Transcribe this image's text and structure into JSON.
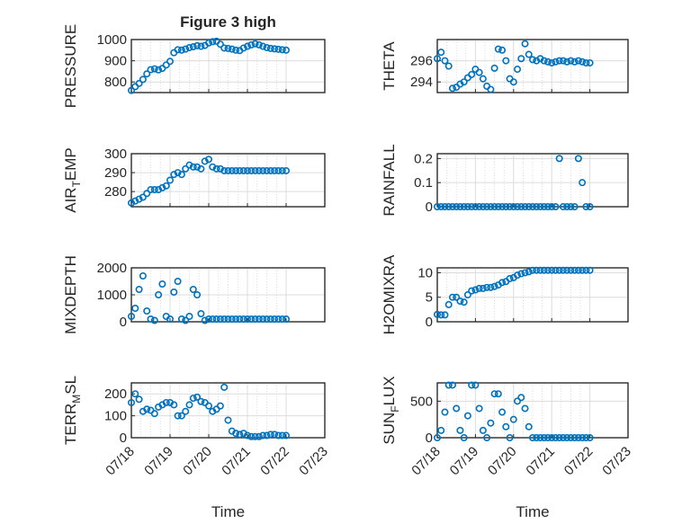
{
  "chart_data": [
    {
      "type": "scatter",
      "title": "Figure 3 high",
      "ylabel": "PRESSURE",
      "ylim": [
        750,
        1000
      ],
      "yticks": [
        "800",
        "900",
        "1000"
      ],
      "xlabel": "",
      "xticks": [],
      "color": "#0072bd",
      "series": [
        {
          "x": [
            0.0,
            0.1,
            0.2,
            0.3,
            0.4,
            0.5,
            0.6,
            0.7,
            0.8,
            0.9,
            1.0,
            1.1,
            1.2,
            1.3,
            1.4,
            1.5,
            1.6,
            1.7,
            1.8,
            1.9,
            2.0,
            2.1,
            2.2,
            2.3,
            2.4,
            2.5,
            2.6,
            2.7,
            2.8,
            2.9,
            3.0,
            3.1,
            3.2,
            3.3,
            3.4,
            3.5,
            3.6,
            3.7,
            3.8,
            3.9,
            4.0
          ],
          "y": [
            760,
            778,
            793,
            812,
            838,
            858,
            862,
            857,
            864,
            880,
            897,
            938,
            952,
            950,
            955,
            962,
            966,
            971,
            968,
            972,
            984,
            990,
            992,
            978,
            960,
            958,
            955,
            950,
            948,
            960,
            968,
            975,
            980,
            975,
            968,
            962,
            958,
            956,
            954,
            952,
            950
          ]
        }
      ]
    },
    {
      "type": "scatter",
      "title": "",
      "ylabel": "THETA",
      "ylim": [
        293,
        298
      ],
      "yticks": [
        "294",
        "296"
      ],
      "xlabel": "",
      "xticks": [],
      "color": "#0072bd",
      "series": [
        {
          "x": [
            0.0,
            0.1,
            0.2,
            0.3,
            0.4,
            0.5,
            0.6,
            0.7,
            0.8,
            0.9,
            1.0,
            1.1,
            1.2,
            1.3,
            1.4,
            1.5,
            1.6,
            1.7,
            1.8,
            1.9,
            2.0,
            2.1,
            2.2,
            2.3,
            2.4,
            2.5,
            2.6,
            2.7,
            2.8,
            2.9,
            3.0,
            3.1,
            3.2,
            3.3,
            3.4,
            3.5,
            3.6,
            3.7,
            3.8,
            3.9,
            4.0
          ],
          "y": [
            296.2,
            296.8,
            296.0,
            295.5,
            293.4,
            293.5,
            293.8,
            294.0,
            294.4,
            294.7,
            295.2,
            294.9,
            294.3,
            293.6,
            293.3,
            295.3,
            297.1,
            297.0,
            296.0,
            294.3,
            294.0,
            295.2,
            296.2,
            297.6,
            296.6,
            296.1,
            296.0,
            296.2,
            296.0,
            295.9,
            295.8,
            295.9,
            296.0,
            296.0,
            295.9,
            296.0,
            295.9,
            296.0,
            295.9,
            295.8,
            295.8
          ]
        }
      ]
    },
    {
      "type": "scatter",
      "title": "",
      "ylabel": "AIR_TEMP",
      "ylim": [
        272,
        300
      ],
      "yticks": [
        "280",
        "290",
        "300"
      ],
      "xlabel": "",
      "xticks": [],
      "color": "#0072bd",
      "series": [
        {
          "x": [
            0.0,
            0.1,
            0.2,
            0.3,
            0.4,
            0.5,
            0.6,
            0.7,
            0.8,
            0.9,
            1.0,
            1.1,
            1.2,
            1.3,
            1.4,
            1.5,
            1.6,
            1.7,
            1.8,
            1.9,
            2.0,
            2.1,
            2.2,
            2.3,
            2.4,
            2.5,
            2.6,
            2.7,
            2.8,
            2.9,
            3.0,
            3.1,
            3.2,
            3.3,
            3.4,
            3.5,
            3.6,
            3.7,
            3.8,
            3.9,
            4.0
          ],
          "y": [
            274,
            275,
            276,
            277,
            279,
            281,
            281,
            281,
            282,
            283,
            286,
            289,
            290,
            289,
            292,
            294,
            293,
            293,
            292,
            296,
            297,
            293,
            292,
            292,
            291,
            291,
            291,
            291,
            291,
            291,
            291,
            291,
            291,
            291,
            291,
            291,
            291,
            291,
            291,
            291,
            291
          ]
        }
      ]
    },
    {
      "type": "scatter",
      "title": "",
      "ylabel": "RAINFALL",
      "ylim": [
        0,
        0.22
      ],
      "yticks": [
        "0",
        "0.1",
        "0.2"
      ],
      "xlabel": "",
      "xticks": [],
      "color": "#0072bd",
      "series": [
        {
          "x": [
            0.0,
            0.1,
            0.2,
            0.3,
            0.4,
            0.5,
            0.6,
            0.7,
            0.8,
            0.9,
            1.0,
            1.1,
            1.2,
            1.3,
            1.4,
            1.5,
            1.6,
            1.7,
            1.8,
            1.9,
            2.0,
            2.1,
            2.2,
            2.3,
            2.4,
            2.5,
            2.6,
            2.7,
            2.8,
            2.9,
            3.0,
            3.1,
            3.2,
            3.3,
            3.4,
            3.5,
            3.6,
            3.7,
            3.8,
            3.9,
            4.0
          ],
          "y": [
            0,
            0,
            0,
            0,
            0,
            0,
            0,
            0,
            0,
            0,
            0,
            0,
            0,
            0,
            0,
            0,
            0,
            0,
            0,
            0,
            0,
            0,
            0,
            0,
            0,
            0,
            0,
            0,
            0,
            0,
            0,
            0,
            0.2,
            0,
            0,
            0,
            0,
            0.2,
            0.1,
            0,
            0
          ]
        }
      ]
    },
    {
      "type": "scatter",
      "title": "",
      "ylabel": "MIXDEPTH",
      "ylim": [
        0,
        2000
      ],
      "yticks": [
        "0",
        "1000",
        "2000"
      ],
      "xlabel": "",
      "xticks": [],
      "color": "#0072bd",
      "series": [
        {
          "x": [
            0.0,
            0.1,
            0.2,
            0.3,
            0.4,
            0.5,
            0.6,
            0.7,
            0.8,
            0.9,
            1.0,
            1.1,
            1.2,
            1.3,
            1.4,
            1.5,
            1.6,
            1.7,
            1.8,
            1.9,
            2.0,
            2.1,
            2.2,
            2.3,
            2.4,
            2.5,
            2.6,
            2.7,
            2.8,
            2.9,
            3.0,
            3.1,
            3.2,
            3.3,
            3.4,
            3.5,
            3.6,
            3.7,
            3.8,
            3.9,
            4.0
          ],
          "y": [
            200,
            500,
            1200,
            1700,
            400,
            100,
            50,
            1000,
            1400,
            200,
            100,
            1100,
            1500,
            100,
            50,
            200,
            1200,
            1000,
            300,
            50,
            100,
            100,
            100,
            100,
            100,
            100,
            100,
            100,
            100,
            100,
            100,
            100,
            100,
            100,
            100,
            100,
            100,
            100,
            100,
            100,
            100
          ]
        }
      ]
    },
    {
      "type": "scatter",
      "title": "",
      "ylabel": "H2OMIXRA",
      "ylim": [
        0,
        11
      ],
      "yticks": [
        "0",
        "5",
        "10"
      ],
      "xlabel": "",
      "xticks": [],
      "color": "#0072bd",
      "series": [
        {
          "x": [
            0.0,
            0.1,
            0.2,
            0.3,
            0.4,
            0.5,
            0.6,
            0.7,
            0.8,
            0.9,
            1.0,
            1.1,
            1.2,
            1.3,
            1.4,
            1.5,
            1.6,
            1.7,
            1.8,
            1.9,
            2.0,
            2.1,
            2.2,
            2.3,
            2.4,
            2.5,
            2.6,
            2.7,
            2.8,
            2.9,
            3.0,
            3.1,
            3.2,
            3.3,
            3.4,
            3.5,
            3.6,
            3.7,
            3.8,
            3.9,
            4.0
          ],
          "y": [
            1.5,
            1.4,
            1.4,
            3.5,
            5.0,
            5.0,
            4.2,
            4.0,
            5.5,
            6.3,
            6.5,
            6.8,
            6.8,
            7.0,
            7.0,
            7.2,
            7.5,
            8.0,
            8.2,
            8.8,
            9.0,
            9.5,
            9.8,
            10.0,
            10.2,
            10.5,
            10.5,
            10.5,
            10.5,
            10.5,
            10.5,
            10.5,
            10.5,
            10.5,
            10.5,
            10.5,
            10.5,
            10.5,
            10.5,
            10.5,
            10.5
          ]
        }
      ]
    },
    {
      "type": "scatter",
      "title": "",
      "ylabel": "TERR_MSL",
      "ylim": [
        0,
        250
      ],
      "yticks": [
        "0",
        "100",
        "200"
      ],
      "xlabel": "Time",
      "xticks": [
        "07/18",
        "07/19",
        "07/20",
        "07/21",
        "07/22",
        "07/23"
      ],
      "color": "#0072bd",
      "series": [
        {
          "x": [
            0.0,
            0.1,
            0.2,
            0.3,
            0.4,
            0.5,
            0.6,
            0.7,
            0.8,
            0.9,
            1.0,
            1.1,
            1.2,
            1.3,
            1.4,
            1.5,
            1.6,
            1.7,
            1.8,
            1.9,
            2.0,
            2.1,
            2.2,
            2.3,
            2.4,
            2.5,
            2.6,
            2.7,
            2.8,
            2.9,
            3.0,
            3.1,
            3.2,
            3.3,
            3.4,
            3.5,
            3.6,
            3.7,
            3.8,
            3.9,
            4.0
          ],
          "y": [
            160,
            200,
            175,
            120,
            130,
            125,
            110,
            140,
            150,
            160,
            160,
            150,
            100,
            100,
            120,
            150,
            180,
            185,
            165,
            160,
            145,
            120,
            130,
            145,
            230,
            80,
            30,
            20,
            15,
            20,
            10,
            5,
            5,
            5,
            10,
            10,
            15,
            15,
            10,
            10,
            10
          ]
        }
      ]
    },
    {
      "type": "scatter",
      "title": "",
      "ylabel": "SUN_FLUX",
      "ylim": [
        0,
        750
      ],
      "yticks": [
        "0",
        "500"
      ],
      "xlabel": "Time",
      "xticks": [
        "07/18",
        "07/19",
        "07/20",
        "07/21",
        "07/22",
        "07/23"
      ],
      "color": "#0072bd",
      "series": [
        {
          "x": [
            0.0,
            0.1,
            0.2,
            0.3,
            0.4,
            0.5,
            0.6,
            0.7,
            0.8,
            0.9,
            1.0,
            1.1,
            1.2,
            1.3,
            1.4,
            1.5,
            1.6,
            1.7,
            1.8,
            1.9,
            2.0,
            2.1,
            2.2,
            2.3,
            2.4,
            2.5,
            2.6,
            2.7,
            2.8,
            2.9,
            3.0,
            3.1,
            3.2,
            3.3,
            3.4,
            3.5,
            3.6,
            3.7,
            3.8,
            3.9,
            4.0
          ],
          "y": [
            0,
            100,
            350,
            720,
            720,
            400,
            100,
            0,
            300,
            720,
            720,
            400,
            100,
            0,
            200,
            600,
            600,
            350,
            150,
            0,
            250,
            500,
            550,
            400,
            150,
            0,
            0,
            0,
            0,
            0,
            0,
            0,
            0,
            0,
            0,
            0,
            0,
            0,
            0,
            0,
            0
          ]
        }
      ]
    }
  ]
}
